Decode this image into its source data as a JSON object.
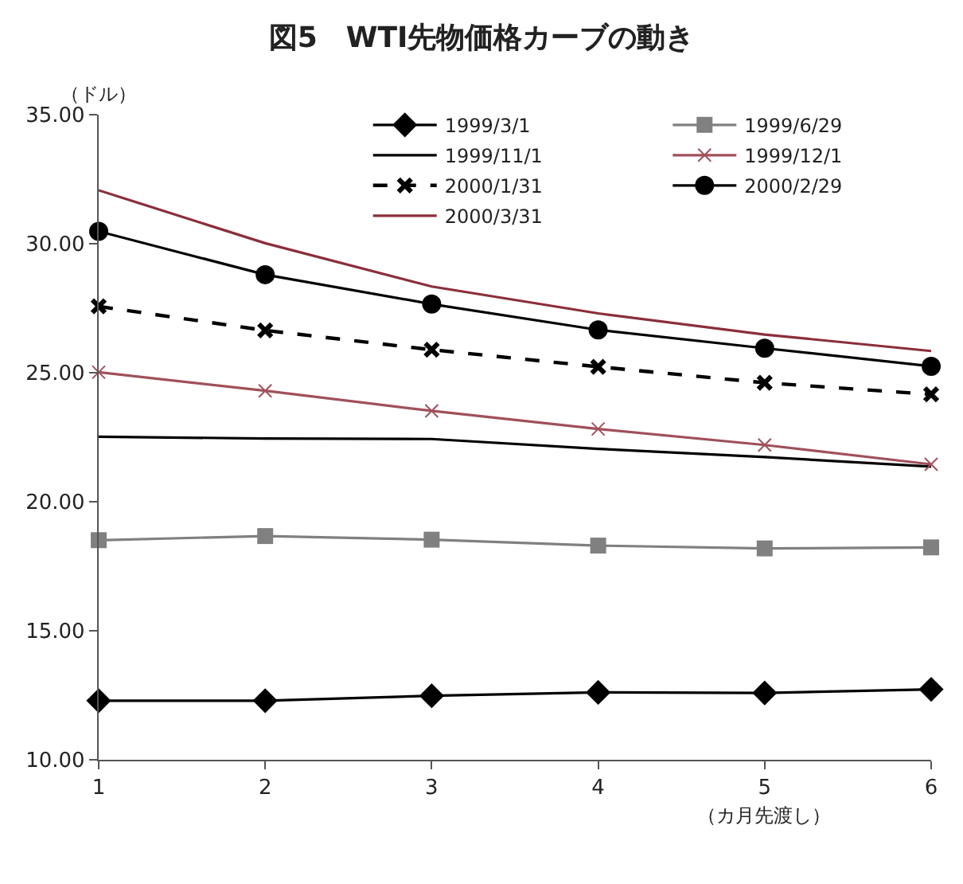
{
  "chart_data": {
    "type": "line",
    "title": "図5　WTI先物価格カーブの動き",
    "ylabel": "（ドル）",
    "xlabel": "（カ月先渡し）",
    "x": [
      1,
      2,
      3,
      4,
      5,
      6
    ],
    "xlim": [
      1,
      6
    ],
    "xticks": [
      1,
      2,
      3,
      4,
      5,
      6
    ],
    "ylim": [
      10,
      35
    ],
    "yticks": [
      {
        "value": 10,
        "label": "10.00"
      },
      {
        "value": 15,
        "label": "15.00"
      },
      {
        "value": 20,
        "label": "20.00"
      },
      {
        "value": 25,
        "label": "25.00"
      },
      {
        "value": 30,
        "label": "30.00"
      },
      {
        "value": 35,
        "label": "35.00"
      }
    ],
    "legend": "top right",
    "series": [
      {
        "name": "1999/3/1",
        "color": "#000000",
        "marker": "diamond",
        "line_style": "solid",
        "values": [
          12.29,
          12.29,
          12.48,
          12.61,
          12.59,
          12.73
        ]
      },
      {
        "name": "1999/6/29",
        "color": "#808080",
        "marker": "square",
        "line_style": "solid",
        "values": [
          18.51,
          18.67,
          18.53,
          18.3,
          18.19,
          18.23
        ]
      },
      {
        "name": "1999/11/1",
        "color": "#000000",
        "marker": "none",
        "line_style": "solid",
        "values": [
          22.52,
          22.45,
          22.43,
          22.05,
          21.73,
          21.36
        ]
      },
      {
        "name": "1999/12/1",
        "color": "#a0505a",
        "marker": "cross",
        "line_style": "solid",
        "values": [
          25.02,
          24.3,
          23.52,
          22.82,
          22.2,
          21.45
        ]
      },
      {
        "name": "2000/1/31",
        "color": "#000000",
        "marker": "cross",
        "line_style": "dashed",
        "values": [
          27.57,
          26.64,
          25.89,
          25.23,
          24.61,
          24.16
        ]
      },
      {
        "name": "2000/2/29",
        "color": "#000000",
        "marker": "circle",
        "line_style": "solid",
        "values": [
          30.48,
          28.8,
          27.66,
          26.66,
          25.95,
          25.25
        ]
      },
      {
        "name": "2000/3/31",
        "color": "#8b2e3a",
        "marker": "none",
        "line_style": "solid",
        "values": [
          32.07,
          30.02,
          28.34,
          27.3,
          26.48,
          25.84
        ]
      }
    ]
  }
}
